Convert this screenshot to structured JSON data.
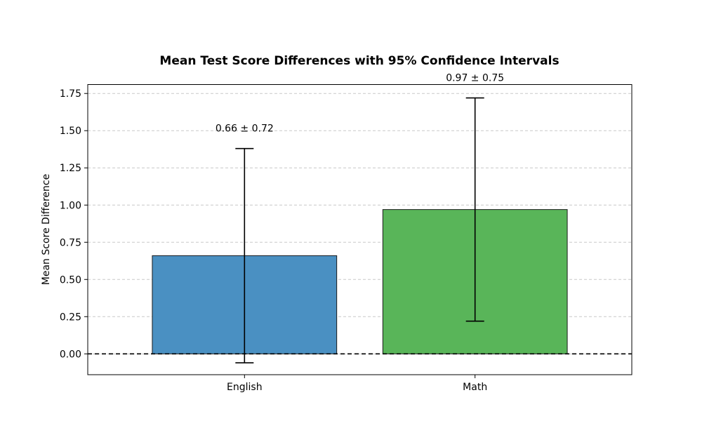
{
  "chart_data": {
    "type": "bar",
    "title": "Mean Test Score Differences with 95% Confidence Intervals",
    "xlabel": "",
    "ylabel": "Mean Score Difference",
    "categories": [
      "English",
      "Math"
    ],
    "values": [
      0.66,
      0.97
    ],
    "errors": [
      0.72,
      0.75
    ],
    "data_labels": [
      "0.66 ± 0.72",
      "0.97 ± 0.75"
    ],
    "colors": [
      "#4a90c2",
      "#59b559"
    ],
    "ylim": [
      -0.14,
      1.81
    ],
    "yticks": [
      0.0,
      0.25,
      0.5,
      0.75,
      1.0,
      1.25,
      1.5,
      1.75
    ],
    "ytick_labels": [
      "0.00",
      "0.25",
      "0.50",
      "0.75",
      "1.00",
      "1.25",
      "1.50",
      "1.75"
    ],
    "reference_line": 0,
    "grid": "y-dashed"
  }
}
